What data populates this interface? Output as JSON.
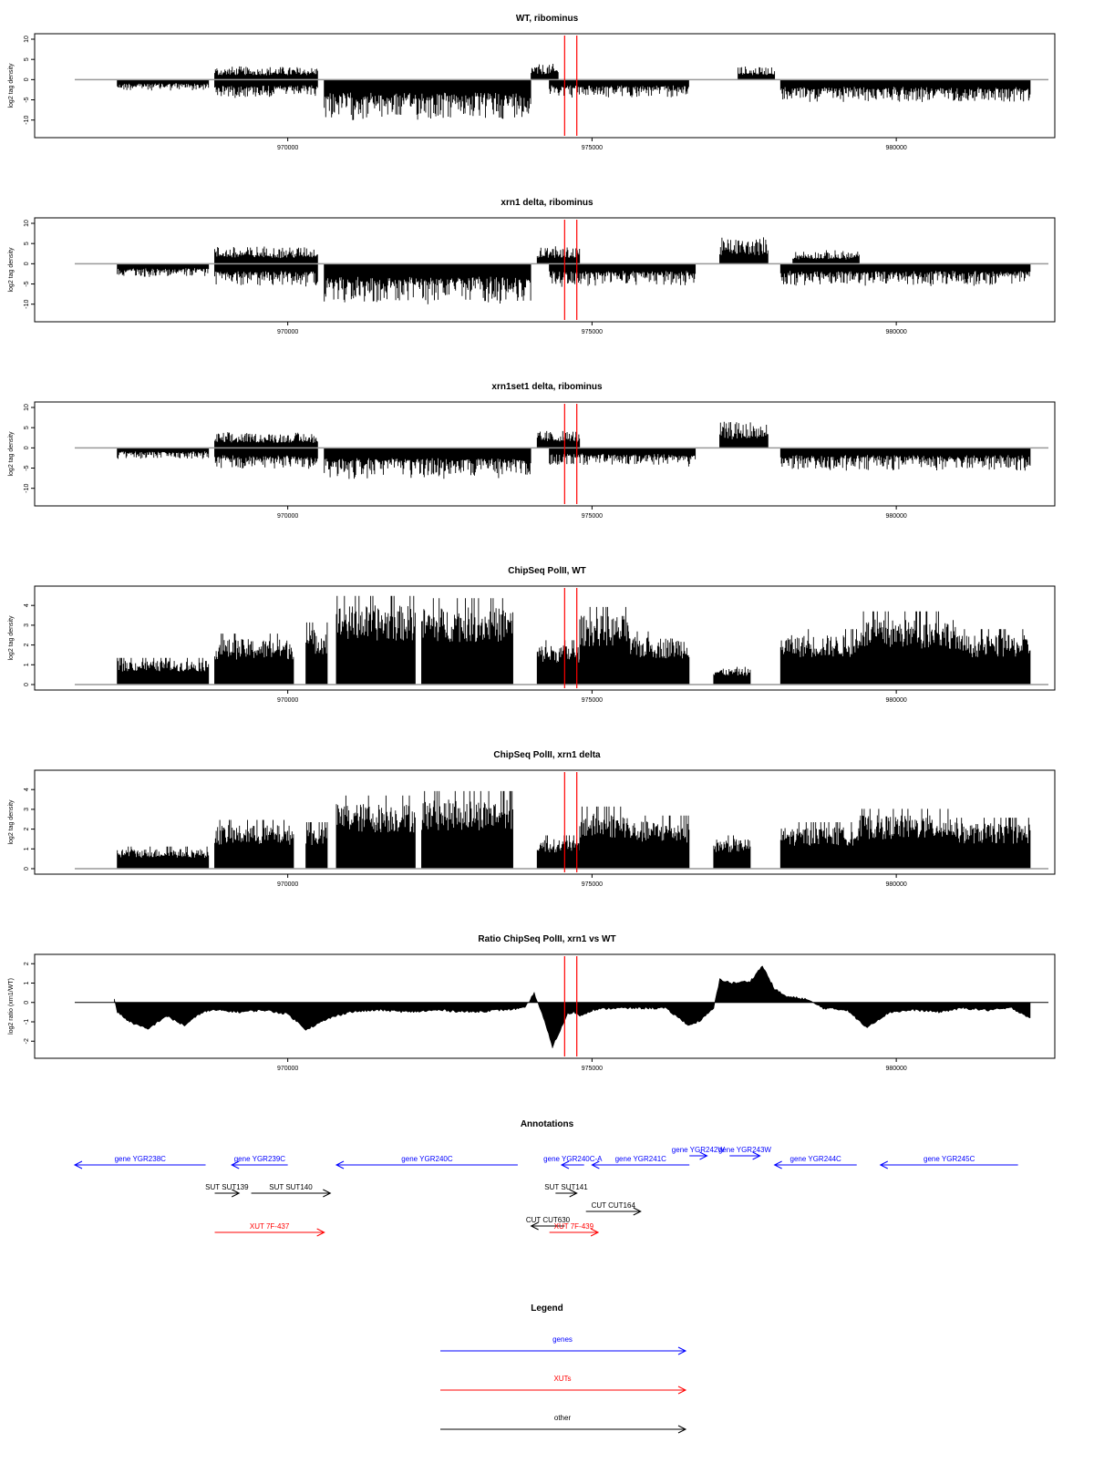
{
  "colors": {
    "bars": "#000000",
    "baseline": "#999999",
    "marker": "#ff0000",
    "gene": "#0000ff",
    "xut": "#ff0000",
    "other": "#000000"
  },
  "chart_data": [
    {
      "type": "bar",
      "title": "WT, ribominus",
      "ylabel": "log2 tag density",
      "ylim": [
        -13,
        10
      ],
      "yticks": [
        "-10",
        "-5",
        "0",
        "5",
        "10"
      ],
      "xlim": [
        966500,
        982500
      ],
      "xticks": [
        "970000",
        "975000",
        "980000"
      ],
      "markers": [
        974550,
        974750
      ],
      "segments": [
        {
          "start": 967200,
          "end": 968700,
          "sign": -1,
          "amp": 2.5
        },
        {
          "start": 968800,
          "end": 970500,
          "sign": 1,
          "amp": 3
        },
        {
          "start": 968800,
          "end": 970500,
          "sign": -1,
          "amp": 4
        },
        {
          "start": 970600,
          "end": 974000,
          "sign": -1,
          "amp": 9
        },
        {
          "start": 974000,
          "end": 974450,
          "sign": 1,
          "amp": 3.5
        },
        {
          "start": 974300,
          "end": 976600,
          "sign": -1,
          "amp": 4
        },
        {
          "start": 977400,
          "end": 978000,
          "sign": 1,
          "amp": 3
        },
        {
          "start": 978100,
          "end": 982200,
          "sign": -1,
          "amp": 5
        }
      ]
    },
    {
      "type": "bar",
      "title": "xrn1 delta, ribominus",
      "ylabel": "log2 tag density",
      "ylim": [
        -13,
        10
      ],
      "yticks": [
        "-10",
        "-5",
        "0",
        "5",
        "10"
      ],
      "xlim": [
        966500,
        982500
      ],
      "xticks": [
        "970000",
        "975000",
        "980000"
      ],
      "markers": [
        974550,
        974750
      ],
      "segments": [
        {
          "start": 967200,
          "end": 968700,
          "sign": -1,
          "amp": 3
        },
        {
          "start": 968800,
          "end": 970500,
          "sign": 1,
          "amp": 4
        },
        {
          "start": 968800,
          "end": 970500,
          "sign": -1,
          "amp": 5
        },
        {
          "start": 970600,
          "end": 974000,
          "sign": -1,
          "amp": 9
        },
        {
          "start": 974100,
          "end": 974800,
          "sign": 1,
          "amp": 4
        },
        {
          "start": 974300,
          "end": 976700,
          "sign": -1,
          "amp": 5
        },
        {
          "start": 977100,
          "end": 977900,
          "sign": 1,
          "amp": 6
        },
        {
          "start": 978300,
          "end": 979400,
          "sign": 1,
          "amp": 3
        },
        {
          "start": 978100,
          "end": 982200,
          "sign": -1,
          "amp": 5
        }
      ]
    },
    {
      "type": "bar",
      "title": "xrn1set1 delta, ribominus",
      "ylabel": "log2 tag density",
      "ylim": [
        -13,
        10
      ],
      "yticks": [
        "-10",
        "-5",
        "0",
        "5",
        "10"
      ],
      "xlim": [
        966500,
        982500
      ],
      "xticks": [
        "970000",
        "975000",
        "980000"
      ],
      "markers": [
        974550,
        974750
      ],
      "segments": [
        {
          "start": 967200,
          "end": 968700,
          "sign": -1,
          "amp": 2.5
        },
        {
          "start": 968800,
          "end": 970500,
          "sign": 1,
          "amp": 3.5
        },
        {
          "start": 968800,
          "end": 970500,
          "sign": -1,
          "amp": 5
        },
        {
          "start": 970600,
          "end": 974000,
          "sign": -1,
          "amp": 7
        },
        {
          "start": 974100,
          "end": 974800,
          "sign": 1,
          "amp": 4
        },
        {
          "start": 974300,
          "end": 976700,
          "sign": -1,
          "amp": 4
        },
        {
          "start": 977100,
          "end": 977900,
          "sign": 1,
          "amp": 6
        },
        {
          "start": 978100,
          "end": 982200,
          "sign": -1,
          "amp": 5
        }
      ]
    },
    {
      "type": "bar",
      "title": "ChipSeq PolII, WT",
      "ylabel": "log2 tag density",
      "ylim": [
        0,
        4.7
      ],
      "yticks": [
        "0",
        "1",
        "2",
        "3",
        "4"
      ],
      "xlim": [
        966500,
        982500
      ],
      "xticks": [
        "970000",
        "975000",
        "980000"
      ],
      "markers": [
        974550,
        974750
      ],
      "segments": [
        {
          "start": 967200,
          "end": 968700,
          "sign": 1,
          "amp": 1.2
        },
        {
          "start": 968800,
          "end": 970100,
          "sign": 1,
          "amp": 2.3
        },
        {
          "start": 970300,
          "end": 970650,
          "sign": 1,
          "amp": 2.8
        },
        {
          "start": 970800,
          "end": 972100,
          "sign": 1,
          "amp": 4
        },
        {
          "start": 972200,
          "end": 973700,
          "sign": 1,
          "amp": 3.9
        },
        {
          "start": 974100,
          "end": 974800,
          "sign": 1,
          "amp": 2
        },
        {
          "start": 974800,
          "end": 975600,
          "sign": 1,
          "amp": 3.5
        },
        {
          "start": 975600,
          "end": 976600,
          "sign": 1,
          "amp": 2.4
        },
        {
          "start": 977000,
          "end": 977600,
          "sign": 1,
          "amp": 0.8
        },
        {
          "start": 978100,
          "end": 979400,
          "sign": 1,
          "amp": 2.5
        },
        {
          "start": 979400,
          "end": 981000,
          "sign": 1,
          "amp": 3.3
        },
        {
          "start": 981000,
          "end": 982200,
          "sign": 1,
          "amp": 2.5
        }
      ]
    },
    {
      "type": "bar",
      "title": "ChipSeq PolII, xrn1 delta",
      "ylabel": "log2 tag density",
      "ylim": [
        0,
        4.7
      ],
      "yticks": [
        "0",
        "1",
        "2",
        "3",
        "4"
      ],
      "xlim": [
        966500,
        982500
      ],
      "xticks": [
        "970000",
        "975000",
        "980000"
      ],
      "markers": [
        974550,
        974750
      ],
      "segments": [
        {
          "start": 967200,
          "end": 968700,
          "sign": 1,
          "amp": 1
        },
        {
          "start": 968800,
          "end": 970100,
          "sign": 1,
          "amp": 2.2
        },
        {
          "start": 970300,
          "end": 970650,
          "sign": 1,
          "amp": 2.1
        },
        {
          "start": 970800,
          "end": 972100,
          "sign": 1,
          "amp": 3.3
        },
        {
          "start": 972200,
          "end": 973700,
          "sign": 1,
          "amp": 3.5
        },
        {
          "start": 974100,
          "end": 974800,
          "sign": 1,
          "amp": 1.5
        },
        {
          "start": 974800,
          "end": 975600,
          "sign": 1,
          "amp": 2.8
        },
        {
          "start": 975600,
          "end": 976600,
          "sign": 1,
          "amp": 2.4
        },
        {
          "start": 977000,
          "end": 977600,
          "sign": 1,
          "amp": 1.5
        },
        {
          "start": 978100,
          "end": 979400,
          "sign": 1,
          "amp": 2.1
        },
        {
          "start": 979400,
          "end": 981000,
          "sign": 1,
          "amp": 2.7
        },
        {
          "start": 981000,
          "end": 982200,
          "sign": 1,
          "amp": 2.3
        }
      ]
    },
    {
      "type": "area",
      "title": "Ratio ChipSeq PolII, xrn1 vs WT",
      "ylabel": "log2 ratio (xrn1/WT)",
      "ylim": [
        -2.6,
        2.2
      ],
      "yticks": [
        "-2",
        "-1",
        "0",
        "1",
        "2"
      ],
      "xlim": [
        966500,
        982500
      ],
      "xticks": [
        "970000",
        "975000",
        "980000"
      ],
      "markers": [
        974550,
        974750
      ],
      "x": [
        967150,
        967200,
        967400,
        967700,
        968000,
        968300,
        968600,
        968800,
        969200,
        969600,
        970000,
        970300,
        970700,
        971000,
        971500,
        972000,
        972500,
        973000,
        973500,
        973900,
        974050,
        974200,
        974350,
        974500,
        974600,
        974700,
        974800,
        975000,
        975300,
        975700,
        976200,
        976600,
        976800,
        977000,
        977100,
        977300,
        977600,
        977800,
        978000,
        978200,
        978500,
        978800,
        979200,
        979500,
        979900,
        980300,
        980700,
        981100,
        981500,
        981900,
        982200
      ],
      "values": [
        0.2,
        -0.5,
        -1.0,
        -1.4,
        -0.7,
        -1.2,
        -0.5,
        -0.4,
        -0.5,
        -0.4,
        -0.6,
        -1.4,
        -0.8,
        -0.5,
        -0.4,
        -0.5,
        -0.4,
        -0.5,
        -0.4,
        -0.3,
        0.5,
        -0.8,
        -2.3,
        -1.3,
        -0.6,
        -0.5,
        -0.7,
        -0.4,
        -0.3,
        -0.3,
        -0.3,
        -1.2,
        -0.9,
        -0.3,
        1.2,
        1.0,
        1.1,
        1.9,
        0.7,
        0.3,
        0.2,
        -0.3,
        -0.4,
        -1.3,
        -0.5,
        -0.4,
        -0.5,
        -0.3,
        -0.4,
        -0.3,
        -0.8
      ]
    }
  ],
  "annotations": {
    "title": "Annotations",
    "items": [
      {
        "label": "gene YGR238C",
        "start": 966500,
        "end": 968650,
        "dir": "left",
        "kind": "gene",
        "row": 0
      },
      {
        "label": "gene YGR239C",
        "start": 969080,
        "end": 970000,
        "dir": "left",
        "kind": "gene",
        "row": 0
      },
      {
        "label": "gene YGR240C",
        "start": 970800,
        "end": 973780,
        "dir": "left",
        "kind": "gene",
        "row": 0
      },
      {
        "label": "gene YGR240C-A",
        "start": 974500,
        "end": 974870,
        "dir": "left",
        "kind": "gene",
        "row": 0
      },
      {
        "label": "gene YGR241C",
        "start": 975000,
        "end": 976600,
        "dir": "left",
        "kind": "gene",
        "row": 0
      },
      {
        "label": "gene YGR242W",
        "start": 976600,
        "end": 976890,
        "dir": "right",
        "kind": "gene",
        "row": -1
      },
      {
        "label": "gene YGR243W",
        "start": 977260,
        "end": 977760,
        "dir": "right",
        "kind": "gene",
        "row": -1
      },
      {
        "label": "gene YGR244C",
        "start": 978000,
        "end": 979350,
        "dir": "left",
        "kind": "gene",
        "row": 0
      },
      {
        "label": "gene YGR245C",
        "start": 979740,
        "end": 982000,
        "dir": "left",
        "kind": "gene",
        "row": 0
      },
      {
        "label": "SUT SUT139",
        "start": 968800,
        "end": 969200,
        "dir": "right",
        "kind": "other",
        "row": 1
      },
      {
        "label": "SUT SUT140",
        "start": 969400,
        "end": 970700,
        "dir": "right",
        "kind": "other",
        "row": 1
      },
      {
        "label": "SUT SUT141",
        "start": 974400,
        "end": 974750,
        "dir": "right",
        "kind": "other",
        "row": 1
      },
      {
        "label": "CUT CUT164",
        "start": 974900,
        "end": 975800,
        "dir": "right",
        "kind": "other",
        "row": 2
      },
      {
        "label": "CUT CUT630",
        "start": 974000,
        "end": 974550,
        "dir": "left",
        "kind": "other",
        "row": 3
      },
      {
        "label": "XUT 7F-437",
        "start": 968800,
        "end": 970600,
        "dir": "right",
        "kind": "xut",
        "row": 4
      },
      {
        "label": "XUT 7F-439",
        "start": 974300,
        "end": 975100,
        "dir": "right",
        "kind": "xut",
        "row": 4
      }
    ]
  },
  "legend": {
    "title": "Legend",
    "items": [
      {
        "label": "genes",
        "kind": "gene"
      },
      {
        "label": "XUTs",
        "kind": "xut"
      },
      {
        "label": "other",
        "kind": "other"
      }
    ]
  }
}
